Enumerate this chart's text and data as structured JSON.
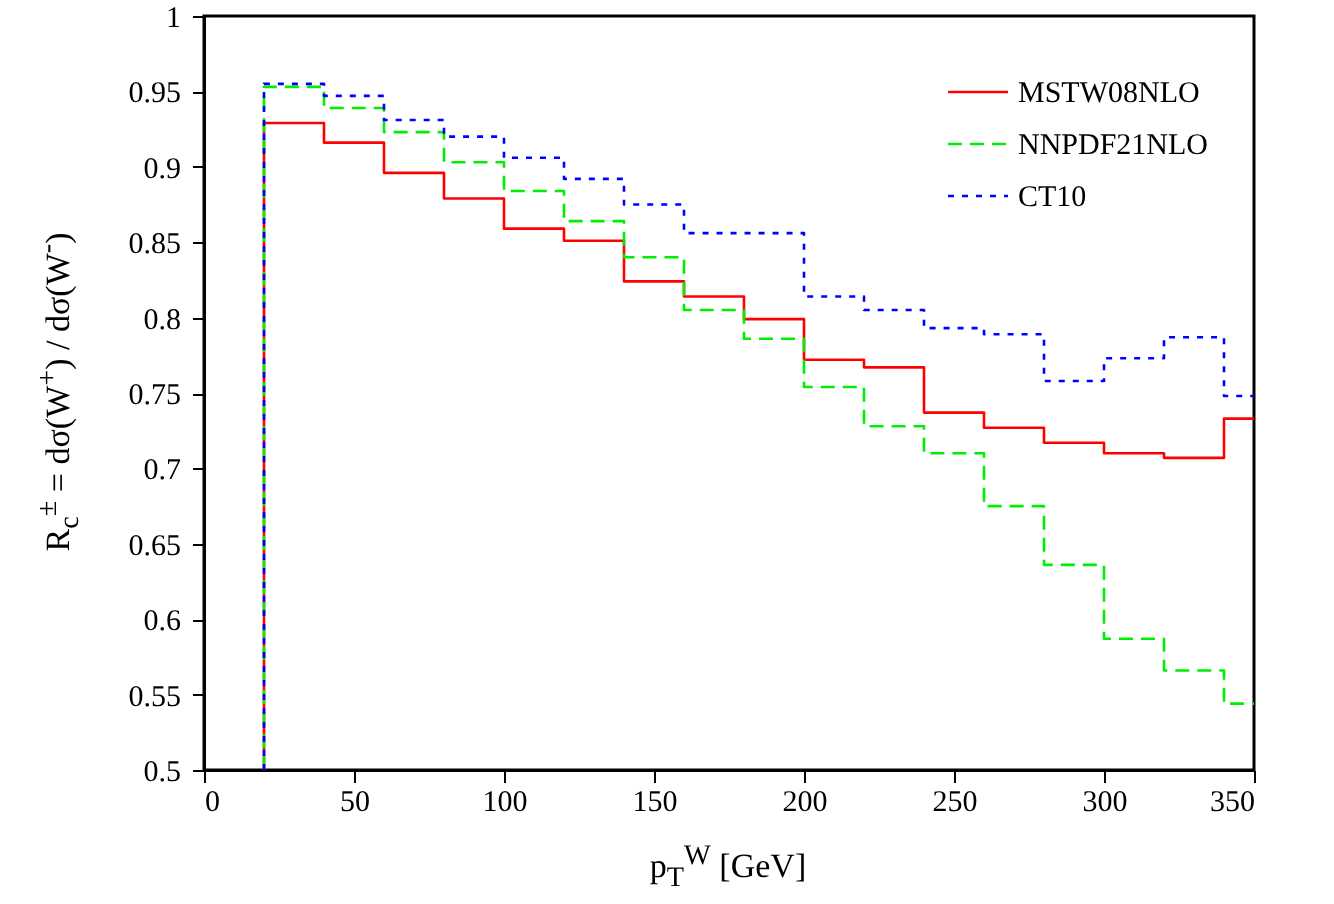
{
  "chart_data": {
    "type": "histogram",
    "xlabel": "p$_{T}$$^{W}$ [GeV]",
    "ylabel": "R$_{c}$$^{±}$ = dσ(W$^{+}$) / dσ(W$^{-}$)",
    "bins": [
      20,
      40,
      60,
      80,
      100,
      120,
      140,
      160,
      180,
      200,
      220,
      240,
      260,
      280,
      300,
      320,
      340,
      350
    ],
    "series": [
      {
        "name": "MSTW08NLO",
        "color": "#ff0000",
        "line_style": "solid",
        "values": [
          0.929,
          0.916,
          0.896,
          0.879,
          0.859,
          0.851,
          0.824,
          0.814,
          0.799,
          0.772,
          0.767,
          0.737,
          0.727,
          0.717,
          0.71,
          0.707,
          0.733
        ]
      },
      {
        "name": "NNPDF21NLO",
        "color": "#00ee00",
        "line_style": "dashed",
        "values": [
          0.953,
          0.939,
          0.923,
          0.903,
          0.884,
          0.864,
          0.84,
          0.805,
          0.786,
          0.754,
          0.728,
          0.71,
          0.675,
          0.636,
          0.587,
          0.566,
          0.544
        ]
      },
      {
        "name": "CT10",
        "color": "#0000ff",
        "line_style": "dotted",
        "values": [
          0.955,
          0.947,
          0.931,
          0.92,
          0.906,
          0.892,
          0.875,
          0.856,
          0.856,
          0.814,
          0.805,
          0.793,
          0.789,
          0.758,
          0.773,
          0.787,
          0.748
        ]
      }
    ],
    "xlim": [
      0,
      350
    ],
    "xticks": [
      0,
      50,
      100,
      150,
      200,
      250,
      300,
      350
    ],
    "ylim": [
      0.5,
      1
    ],
    "yticks": [
      0.5,
      0.55,
      0.6,
      0.65,
      0.7,
      0.75,
      0.8,
      0.85,
      0.9,
      0.95,
      1
    ],
    "grid": false,
    "legend": "top right"
  }
}
